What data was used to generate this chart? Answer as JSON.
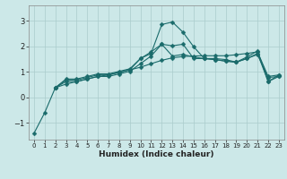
{
  "xlabel": "Humidex (Indice chaleur)",
  "background_color": "#cce8e8",
  "grid_color": "#aacccc",
  "line_color": "#1a6b6b",
  "xlim": [
    -0.5,
    23.5
  ],
  "ylim": [
    -1.65,
    3.6
  ],
  "yticks": [
    -1,
    0,
    1,
    2,
    3
  ],
  "xticks": [
    0,
    1,
    2,
    3,
    4,
    5,
    6,
    7,
    8,
    9,
    10,
    11,
    12,
    13,
    14,
    15,
    16,
    17,
    18,
    19,
    20,
    21,
    22,
    23
  ],
  "line1_x": [
    0,
    1,
    2,
    3,
    4,
    5,
    6,
    7,
    8,
    9,
    10,
    11,
    12,
    13,
    14,
    15,
    16,
    17,
    18,
    19,
    20,
    21,
    22,
    23
  ],
  "line1_y": [
    -1.4,
    -0.6,
    0.38,
    0.52,
    0.62,
    0.72,
    0.82,
    0.88,
    0.98,
    1.08,
    1.18,
    1.32,
    1.45,
    1.55,
    1.6,
    1.62,
    1.63,
    1.63,
    1.63,
    1.67,
    1.72,
    1.78,
    0.82,
    0.88
  ],
  "line2_x": [
    2,
    3,
    4,
    5,
    6,
    7,
    8,
    9,
    10,
    11,
    12,
    13,
    14,
    15,
    16,
    17,
    18,
    19,
    20,
    21,
    22,
    23
  ],
  "line2_y": [
    0.38,
    0.68,
    0.68,
    0.78,
    0.88,
    0.88,
    0.98,
    1.08,
    1.52,
    1.72,
    2.85,
    2.95,
    2.55,
    1.98,
    1.52,
    1.52,
    1.48,
    1.38,
    1.58,
    1.82,
    0.62,
    0.88
  ],
  "line3_x": [
    2,
    3,
    4,
    5,
    6,
    7,
    8,
    9,
    10,
    11,
    12,
    13,
    14,
    15,
    16,
    17,
    18,
    19,
    20,
    21,
    22,
    23
  ],
  "line3_y": [
    0.38,
    0.62,
    0.62,
    0.72,
    0.82,
    0.82,
    0.92,
    1.02,
    1.32,
    1.62,
    2.08,
    1.62,
    1.68,
    1.58,
    1.52,
    1.48,
    1.42,
    1.38,
    1.52,
    1.68,
    0.78,
    0.82
  ],
  "line4_x": [
    2,
    3,
    4,
    5,
    6,
    7,
    8,
    9,
    10,
    11,
    12,
    13,
    14,
    15,
    16,
    17,
    18,
    19,
    20,
    21,
    22,
    23
  ],
  "line4_y": [
    0.38,
    0.72,
    0.72,
    0.82,
    0.92,
    0.92,
    1.02,
    1.12,
    1.52,
    1.78,
    2.08,
    2.02,
    2.08,
    1.52,
    1.52,
    1.48,
    1.42,
    1.38,
    1.52,
    1.72,
    0.62,
    0.82
  ],
  "marker_size": 2.5,
  "line_width": 0.8
}
